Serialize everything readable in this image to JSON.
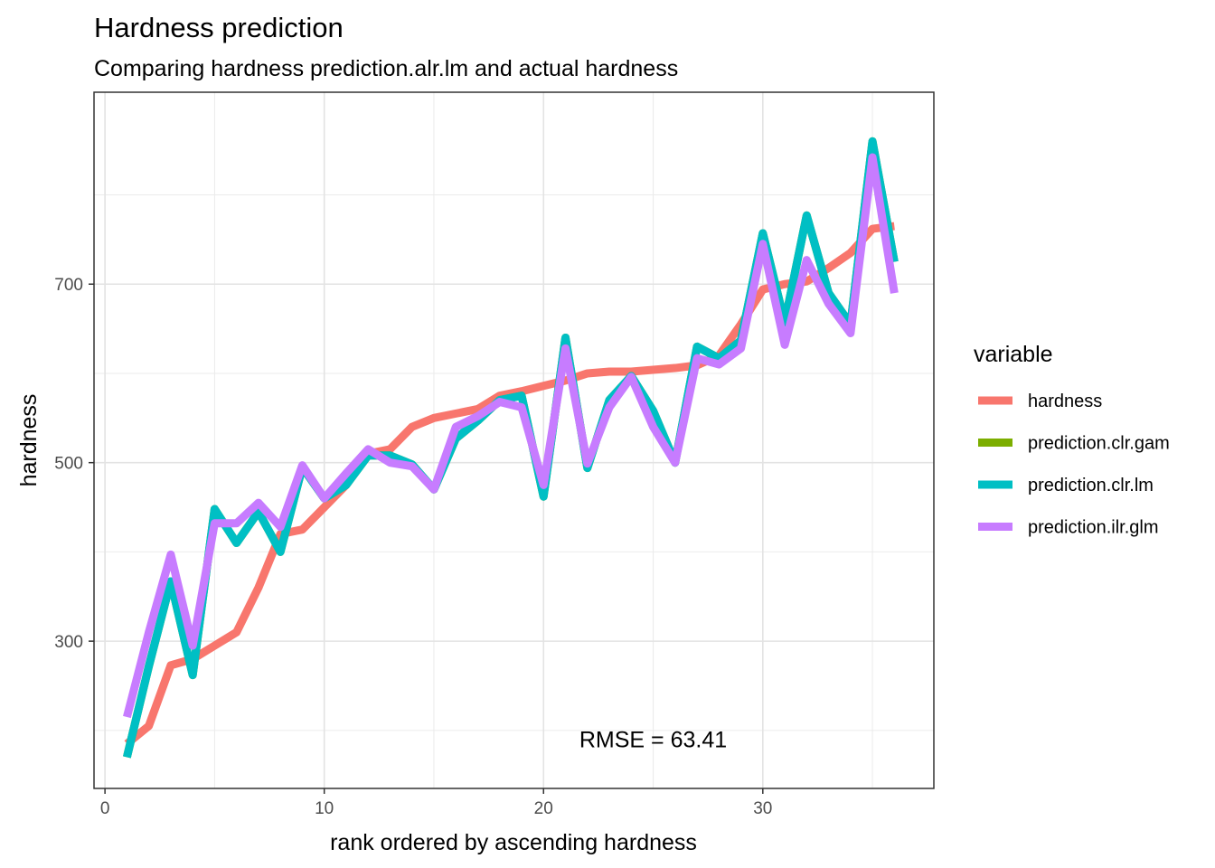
{
  "chart_data": {
    "type": "line",
    "title": "Hardness prediction",
    "subtitle": "Comparing hardness prediction.alr.lm and actual hardness",
    "xlabel": "rank ordered by ascending hardness",
    "ylabel": "hardness",
    "xlim": [
      -0.5,
      37.8
    ],
    "ylim": [
      135,
      915
    ],
    "x_ticks": [
      0,
      10,
      20,
      30
    ],
    "y_ticks": [
      300,
      500,
      700
    ],
    "x_tick_labels": [
      "0",
      "10",
      "20",
      "30"
    ],
    "y_tick_labels": [
      "300",
      "500",
      "700"
    ],
    "x_minor": [
      5,
      15,
      25,
      35
    ],
    "y_minor": [
      200,
      400,
      600,
      800
    ],
    "grid": true,
    "legend_title": "variable",
    "legend_position": "right",
    "annotation": {
      "text": "RMSE =  63.41",
      "x": 25,
      "y": 190
    },
    "x": [
      1,
      2,
      3,
      4,
      5,
      6,
      7,
      8,
      9,
      10,
      11,
      12,
      13,
      14,
      15,
      16,
      17,
      18,
      19,
      20,
      21,
      22,
      23,
      24,
      25,
      26,
      27,
      28,
      29,
      30,
      31,
      32,
      33,
      34,
      35,
      36
    ],
    "series": [
      {
        "name": "hardness",
        "color": "#F8766D",
        "values": [
          185,
          205,
          273,
          280,
          295,
          310,
          360,
          420,
          425,
          450,
          475,
          510,
          515,
          540,
          550,
          555,
          560,
          575,
          580,
          586,
          592,
          600,
          602,
          602,
          604,
          606,
          609,
          620,
          655,
          694,
          700,
          703,
          718,
          735,
          762,
          765
        ]
      },
      {
        "name": "prediction.clr.gam",
        "color": "#7CAE00",
        "values": [
          170,
          272,
          367,
          262,
          448,
          410,
          445,
          400,
          495,
          460,
          475,
          508,
          508,
          498,
          470,
          527,
          547,
          570,
          575,
          462,
          640,
          494,
          570,
          597,
          558,
          500,
          630,
          617,
          637,
          757,
          657,
          777,
          690,
          655,
          860,
          725
        ]
      },
      {
        "name": "prediction.clr.lm",
        "color": "#00BFC4",
        "values": [
          170,
          272,
          367,
          262,
          448,
          410,
          445,
          400,
          495,
          460,
          475,
          508,
          508,
          498,
          470,
          527,
          547,
          570,
          575,
          462,
          640,
          494,
          570,
          597,
          558,
          500,
          630,
          617,
          637,
          757,
          657,
          777,
          690,
          655,
          860,
          725
        ]
      },
      {
        "name": "prediction.ilr.glm",
        "color": "#C77CFF",
        "values": [
          215,
          310,
          397,
          295,
          432,
          432,
          455,
          428,
          497,
          460,
          488,
          515,
          500,
          496,
          470,
          540,
          552,
          568,
          562,
          475,
          628,
          499,
          562,
          596,
          540,
          500,
          617,
          610,
          628,
          745,
          632,
          727,
          678,
          645,
          842,
          690
        ]
      }
    ]
  }
}
